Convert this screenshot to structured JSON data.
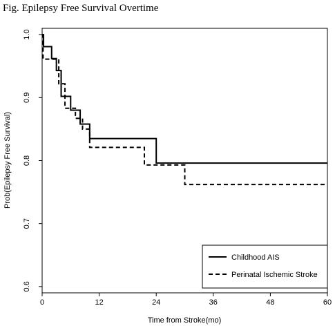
{
  "figure_title": "Fig. Epilepsy Free Survival Overtime",
  "chart_data": {
    "type": "line",
    "subtype": "step (Kaplan-Meier survival curve)",
    "title": "Fig. Epilepsy Free Survival Overtime",
    "xlabel": "Time from Stroke(mo)",
    "ylabel": "Prob(Epilepsy Free Survival)",
    "xlim": [
      0,
      60
    ],
    "ylim": [
      0.59,
      1.01
    ],
    "x_ticks": [
      0,
      12,
      24,
      36,
      48,
      60
    ],
    "y_ticks": [
      0.6,
      0.7,
      0.8,
      0.9,
      1.0
    ],
    "x_tick_labels": [
      "0",
      "12",
      "24",
      "36",
      "48",
      "60"
    ],
    "y_tick_labels": [
      "0.6",
      "0.7",
      "0.8",
      "0.9",
      "1.0"
    ],
    "grid": false,
    "legend_position": "bottom-right",
    "series": [
      {
        "name": "Childhood AIS",
        "line_style": "solid",
        "color": "#000000",
        "x": [
          0,
          0.3,
          2,
          3,
          4,
          6,
          8,
          10,
          24,
          60
        ],
        "y": [
          1.0,
          0.981,
          0.962,
          0.943,
          0.902,
          0.88,
          0.858,
          0.835,
          0.796,
          0.796
        ]
      },
      {
        "name": "Perinatal Ischemic Stroke",
        "line_style": "dashed",
        "color": "#000000",
        "x": [
          0,
          0.2,
          3.5,
          4.8,
          7,
          8.5,
          10,
          21.5,
          30,
          60
        ],
        "y": [
          1.0,
          0.961,
          0.922,
          0.883,
          0.867,
          0.85,
          0.821,
          0.793,
          0.762,
          0.762
        ]
      }
    ]
  }
}
